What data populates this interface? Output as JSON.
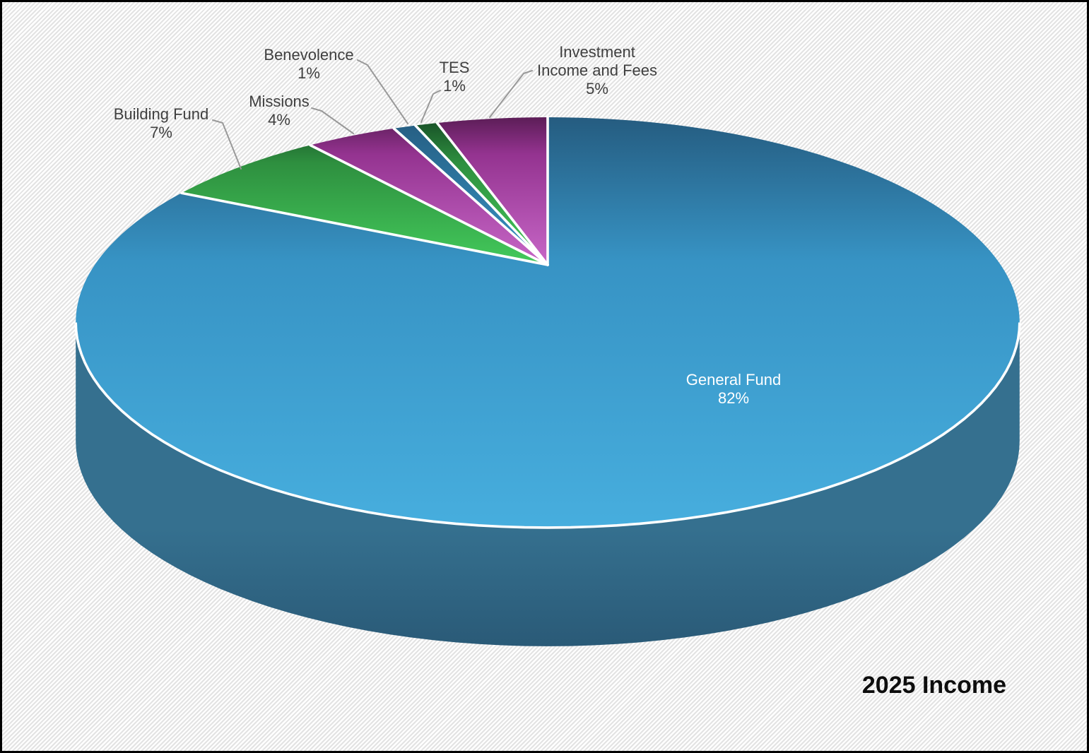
{
  "chart_data": {
    "type": "pie",
    "style": "3d-perspective",
    "title": "2025 Income",
    "unit": "percent",
    "direction": "clockwise",
    "start_angle_deg": 0,
    "slices": [
      {
        "label": "General Fund",
        "value": 82,
        "pct_label": "82%",
        "color_family": "blue",
        "label_position": "inside"
      },
      {
        "label": "Building Fund",
        "value": 7,
        "pct_label": "7%",
        "color_family": "green",
        "label_position": "outside"
      },
      {
        "label": "Missions",
        "value": 4,
        "pct_label": "4%",
        "color_family": "magenta",
        "label_position": "outside"
      },
      {
        "label": "Benevolence",
        "value": 1,
        "pct_label": "1%",
        "color_family": "blue",
        "label_position": "outside"
      },
      {
        "label": "TES",
        "value": 1,
        "pct_label": "1%",
        "color_family": "green",
        "label_position": "outside"
      },
      {
        "label": "Investment Income and Fees",
        "label_lines": [
          "Investment",
          "Income and Fees"
        ],
        "value": 5,
        "pct_label": "5%",
        "color_family": "magenta",
        "label_position": "outside"
      }
    ],
    "palette": {
      "blue": [
        "#255c80",
        "#3793c4",
        "#47aede"
      ],
      "green": [
        "#174e26",
        "#2e8f3f",
        "#43ca5b"
      ],
      "magenta": [
        "#5c1d57",
        "#943390",
        "#c767c7"
      ],
      "side": [
        "#35708f",
        "#2a5a77"
      ],
      "separator": "#ffffff",
      "leader_line": "#999999",
      "label_text": "#3f3f3f",
      "inside_label_text": "#ffffff",
      "title_text": "#0d0d0d",
      "background_stripe": "#e3e3e3",
      "border": "#000000"
    }
  }
}
